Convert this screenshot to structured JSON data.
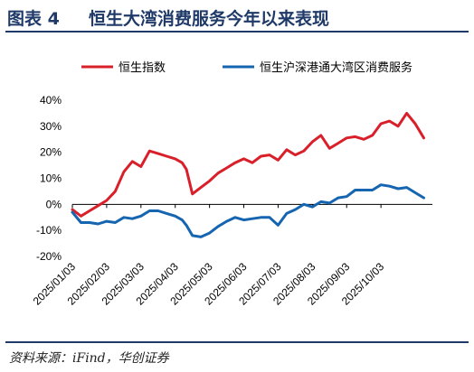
{
  "header": {
    "label": "图表 4",
    "title": "恒生大湾消费服务今年以来表现"
  },
  "footer": {
    "source": "资料来源：iFind，华创证券"
  },
  "colors": {
    "series_red": "#d9202a",
    "series_blue": "#1565b0",
    "title": "#1f3a68"
  },
  "chart_data": {
    "type": "line",
    "ylim": [
      -0.2,
      0.4
    ],
    "yticks": [
      -0.2,
      -0.1,
      0,
      0.1,
      0.2,
      0.3,
      0.4
    ],
    "ytick_labels": [
      "-20%",
      "-10%",
      "0%",
      "10%",
      "20%",
      "30%",
      "40%"
    ],
    "xlim": [
      0,
      42
    ],
    "xticks": [
      0,
      4,
      8,
      12,
      16,
      20,
      24,
      28,
      32,
      36
    ],
    "xtick_labels": [
      "2025/01/03",
      "2025/02/03",
      "2025/03/03",
      "2025/04/03",
      "2025/05/03",
      "2025/06/03",
      "2025/07/03",
      "2025/08/03",
      "2025/09/03",
      "2025/10/03"
    ],
    "series": [
      {
        "name": "恒生指数",
        "color": "#d9202a",
        "x": [
          0,
          1,
          2,
          3,
          4,
          5,
          6,
          7,
          8,
          9,
          10,
          11,
          12,
          12.8,
          13.3,
          14,
          15,
          16,
          17,
          18,
          19,
          20,
          21,
          22,
          23,
          24,
          25,
          26,
          27,
          28,
          29,
          30,
          31,
          32,
          33,
          34,
          35,
          36,
          37,
          38,
          39,
          40,
          41
        ],
        "values": [
          -0.02,
          -0.045,
          -0.025,
          -0.005,
          0.015,
          0.05,
          0.125,
          0.165,
          0.145,
          0.205,
          0.195,
          0.185,
          0.175,
          0.16,
          0.135,
          0.04,
          0.065,
          0.09,
          0.12,
          0.14,
          0.16,
          0.175,
          0.16,
          0.185,
          0.19,
          0.17,
          0.21,
          0.19,
          0.205,
          0.24,
          0.265,
          0.215,
          0.235,
          0.255,
          0.26,
          0.25,
          0.265,
          0.31,
          0.32,
          0.3,
          0.35,
          0.31,
          0.255
        ]
      },
      {
        "name": "恒生沪深港通大湾区消费服务",
        "color": "#1565b0",
        "x": [
          0,
          1,
          2,
          3,
          4,
          5,
          6,
          7,
          8,
          9,
          10,
          11,
          12,
          12.8,
          13.3,
          14,
          15,
          16,
          17,
          18,
          19,
          20,
          21,
          22,
          23,
          24,
          25,
          26,
          27,
          28,
          29,
          30,
          31,
          32,
          33,
          34,
          35,
          36,
          37,
          38,
          39,
          40,
          41
        ],
        "values": [
          -0.03,
          -0.07,
          -0.07,
          -0.075,
          -0.065,
          -0.07,
          -0.05,
          -0.055,
          -0.045,
          -0.025,
          -0.025,
          -0.035,
          -0.045,
          -0.06,
          -0.08,
          -0.12,
          -0.125,
          -0.11,
          -0.085,
          -0.065,
          -0.05,
          -0.06,
          -0.055,
          -0.05,
          -0.05,
          -0.08,
          -0.035,
          -0.02,
          0,
          -0.01,
          0.01,
          0.005,
          0.025,
          0.03,
          0.055,
          0.055,
          0.055,
          0.075,
          0.07,
          0.06,
          0.065,
          0.045,
          0.025
        ]
      }
    ]
  }
}
